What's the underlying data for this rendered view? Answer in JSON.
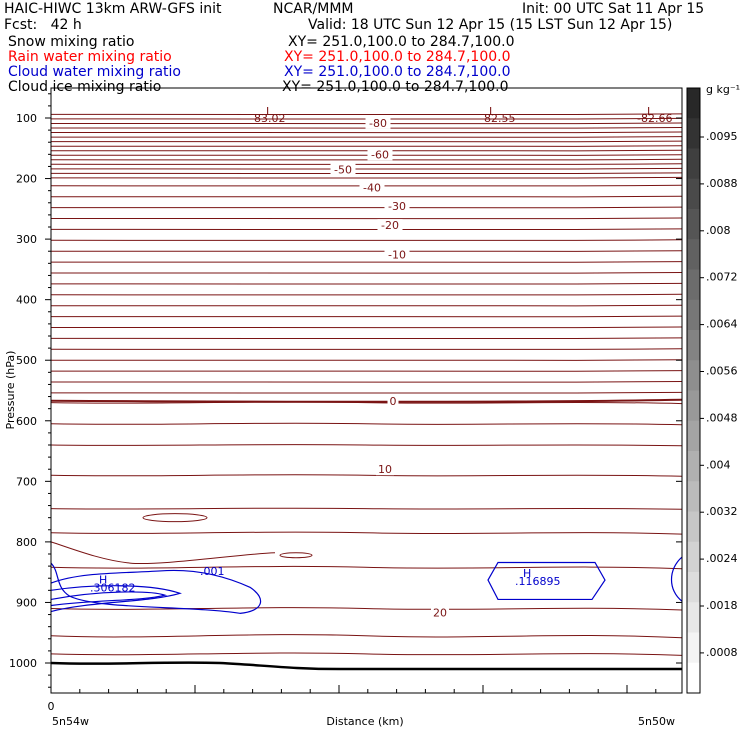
{
  "header": {
    "left_line1": "HAIC-HIWC 13km ARW-GFS init",
    "center_line1": "NCAR/MMM",
    "right_line1": "Init: 00 UTC Sat 11 Apr 15",
    "left_line2": "Fcst:   42 h",
    "right_line2": "Valid: 18 UTC Sun 12 Apr 15 (15 LST Sun 12 Apr 15)"
  },
  "fields": [
    {
      "name": "Snow mixing ratio",
      "xy": "XY= 251.0,100.0 to 284.7,100.0",
      "color": "#000000"
    },
    {
      "name": "Rain water mixing ratio",
      "xy": "XY= 251.0,100.0 to 284.7,100.0",
      "color": "#ff0000"
    },
    {
      "name": "Cloud water mixing ratio",
      "xy": "XY= 251.0,100.0 to 284.7,100.0",
      "color": "#0000cc"
    },
    {
      "name": "Cloud ice mixing ratio",
      "xy": "XY= 251.0,100.0 to 284.7,100.0",
      "color": "#000000"
    }
  ],
  "colorbar": {
    "unit": "g kg⁻¹",
    "labels": [
      ".0095",
      ".0088",
      ".008",
      ".0072",
      ".0064",
      ".0056",
      ".0048",
      ".004",
      ".0032",
      ".0024",
      ".0018",
      ".0008"
    ]
  },
  "chart_data": {
    "type": "contour cross-section",
    "xlabel": "Distance (km)",
    "ylabel": "Pressure (hPa)",
    "x_tick_labels": [
      "0"
    ],
    "x_end_labels": [
      "5n54w",
      "5n50w"
    ],
    "y_ticks": [
      100,
      200,
      300,
      400,
      500,
      600,
      700,
      800,
      900,
      1000
    ],
    "ylim": [
      1050,
      55
    ],
    "temperature_contour_labels": [
      "-80",
      "-60",
      "-50",
      "-40",
      "-30",
      "-20",
      "-10",
      "0",
      "10",
      "20"
    ],
    "temperature_contour_levels": [
      {
        "label": "-80",
        "p": 108
      },
      {
        "label": "-60",
        "p": 160
      },
      {
        "label": "-50",
        "p": 185
      },
      {
        "label": "-40",
        "p": 215
      },
      {
        "label": "-30",
        "p": 245
      },
      {
        "label": "-20",
        "p": 277
      },
      {
        "label": "-10",
        "p": 325
      },
      {
        "label": "0",
        "p": 402
      },
      {
        "label": "10",
        "p": 480
      },
      {
        "label": "20",
        "p": 562
      }
    ],
    "extrema": [
      {
        "kind": "L",
        "value": "-83.02"
      },
      {
        "kind": "L",
        "value": "-82.55"
      },
      {
        "kind": "L",
        "value": "-82.66"
      },
      {
        "kind": "H",
        "value": ".306182"
      },
      {
        "kind": "H",
        "value": ".116895"
      }
    ],
    "cloud_water_contour_label": ".001"
  }
}
